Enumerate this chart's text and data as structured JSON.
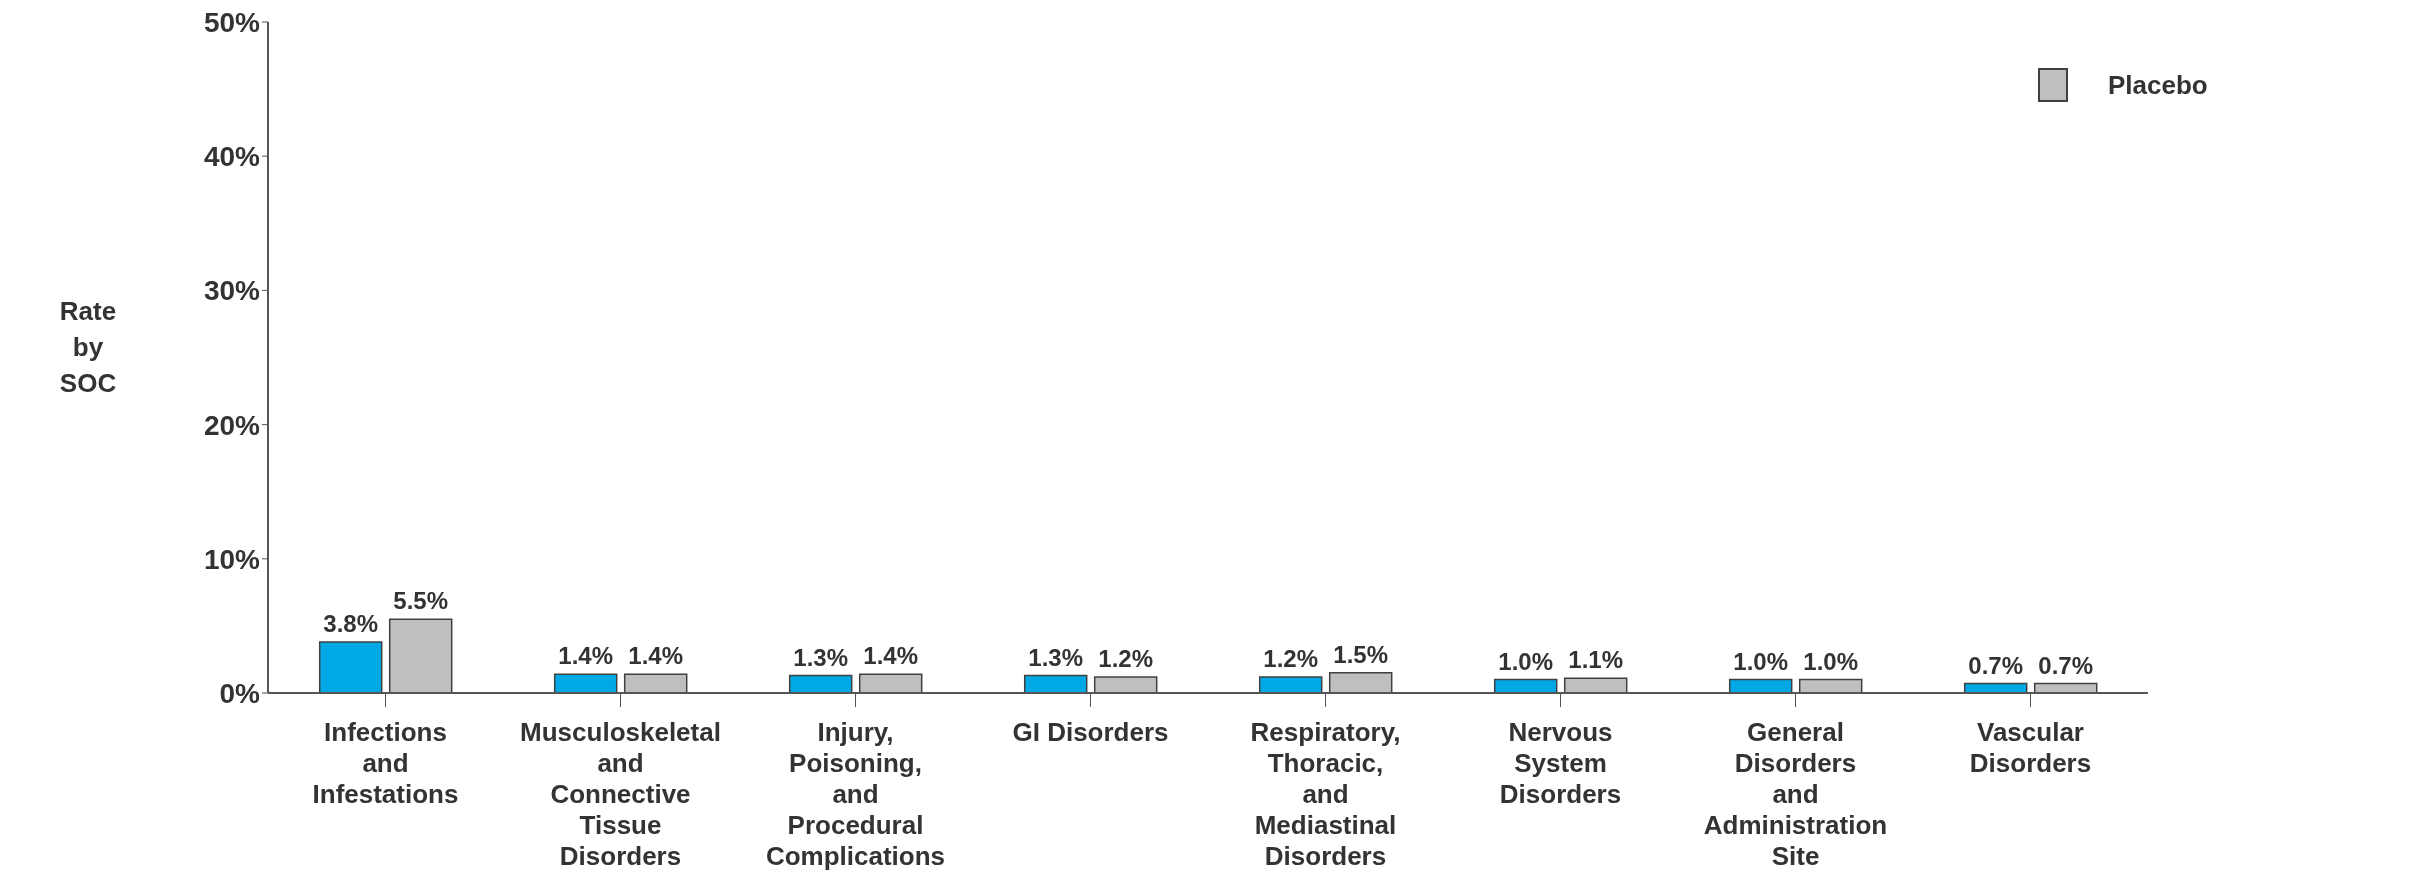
{
  "chart_data": {
    "type": "bar",
    "ylabel": "Rate by SOC",
    "categories": [
      "Infections and Infestations",
      "Musculoskeletal and Connective Tissue Disorders",
      "Injury, Poisoning, and Procedural Complications",
      "GI Disorders",
      "Respiratory, Thoracic, and Mediastinal Disorders",
      "Nervous System Disorders",
      "General Disorders and Administration Site",
      "Vascular Disorders"
    ],
    "series": [
      {
        "color": "#00a9e6",
        "values": [
          3.8,
          1.4,
          1.3,
          1.3,
          1.2,
          1.0,
          1.0,
          0.7
        ],
        "value_labels": [
          "3.8%",
          "1.4%",
          "1.3%",
          "1.3%",
          "1.2%",
          "1.0%",
          "1.0%",
          "0.7%"
        ]
      },
      {
        "name": "Placebo",
        "color": "#bfbfbf",
        "values": [
          5.5,
          1.4,
          1.4,
          1.2,
          1.5,
          1.1,
          1.0,
          0.7
        ],
        "value_labels": [
          "5.5%",
          "1.4%",
          "1.4%",
          "1.2%",
          "1.5%",
          "1.1%",
          "1.0%",
          "0.7%"
        ]
      }
    ],
    "ylim": [
      0,
      50
    ],
    "yticks": [
      {
        "value": 0,
        "label": "0%"
      },
      {
        "value": 10,
        "label": "10%"
      },
      {
        "value": 20,
        "label": "20%"
      },
      {
        "value": 30,
        "label": "30%"
      },
      {
        "value": 40,
        "label": "40%"
      },
      {
        "value": 50,
        "label": "50%"
      }
    ],
    "grid": false,
    "legend": "top right"
  }
}
